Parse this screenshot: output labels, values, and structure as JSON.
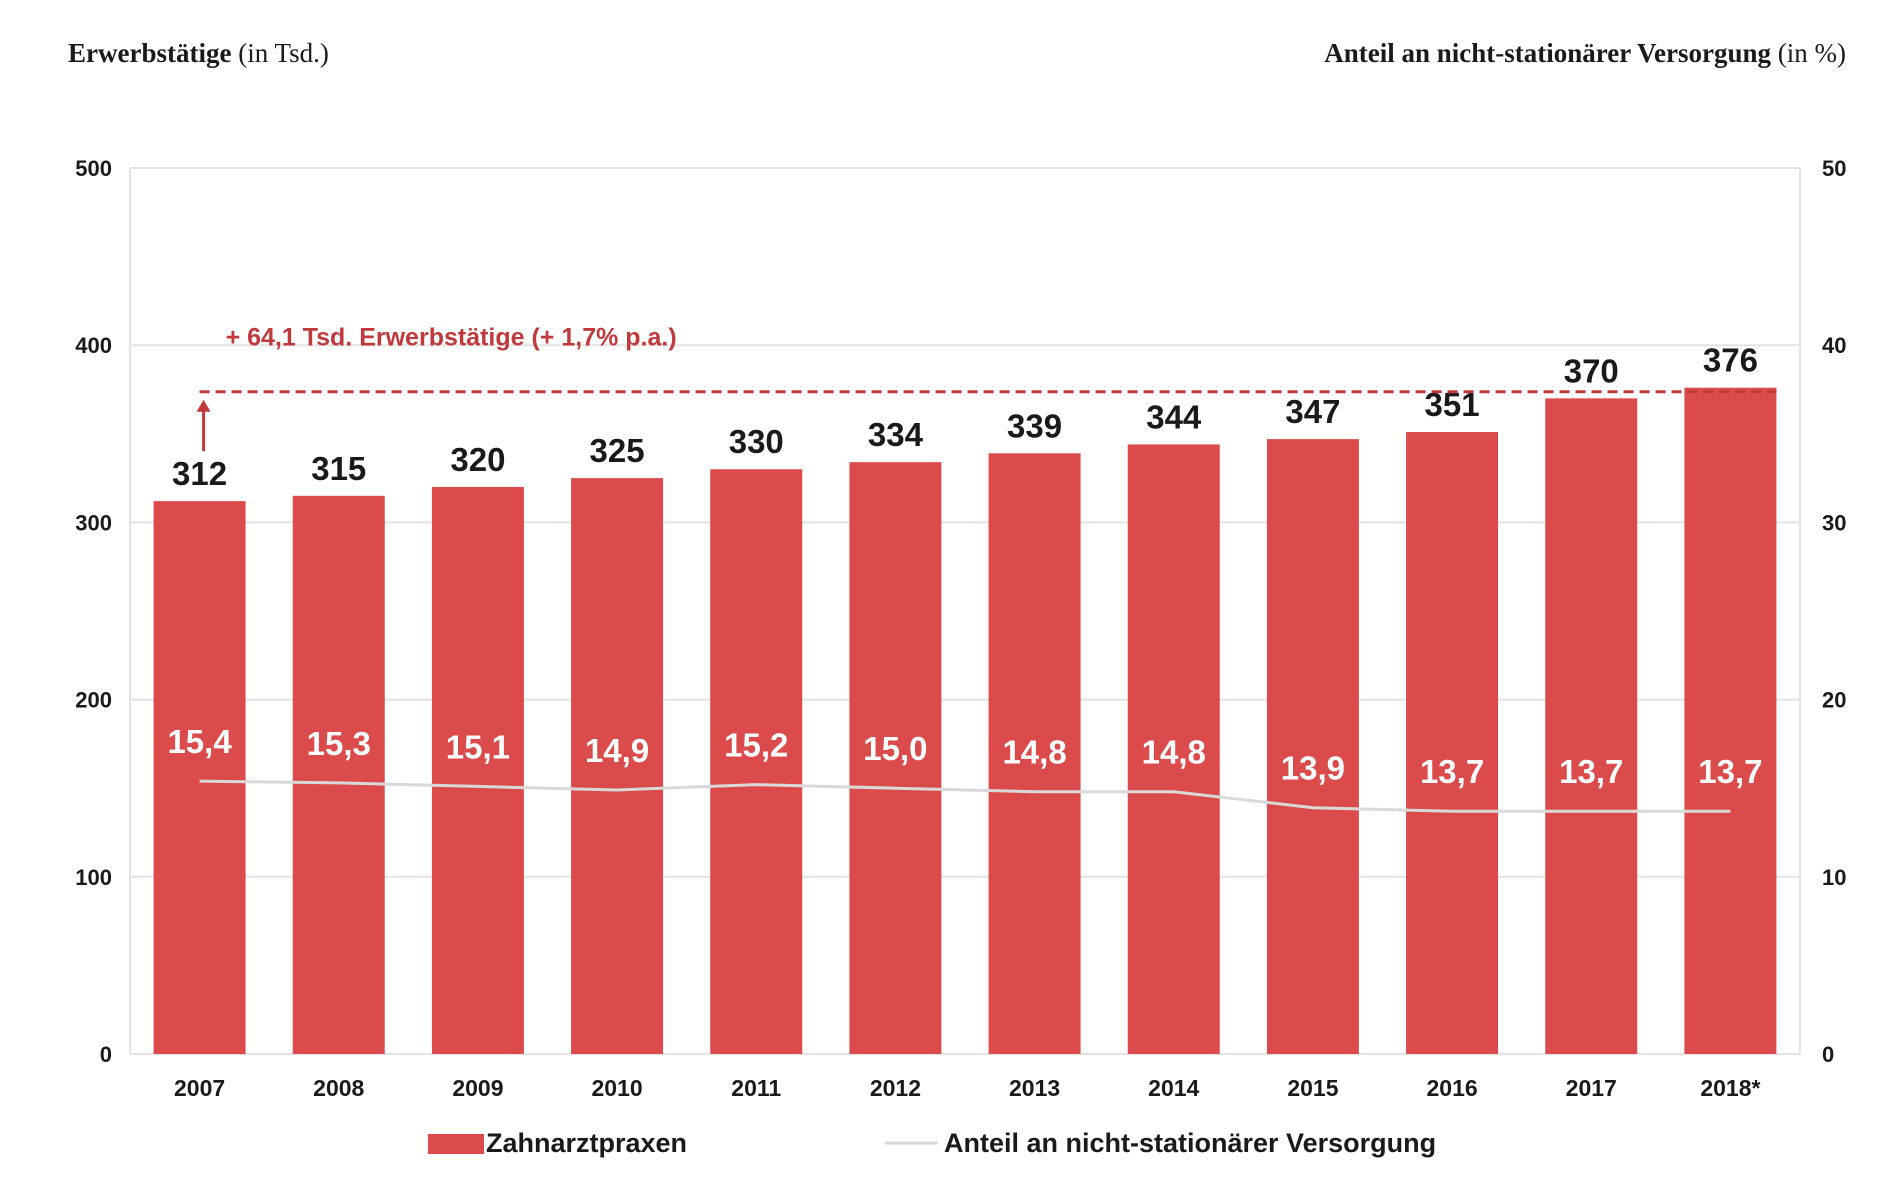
{
  "left_axis_title": {
    "bold": "Erwerbstätige",
    "normal": " (in Tsd.)"
  },
  "right_axis_title": {
    "bold": "Anteil an nicht-stationärer Versorgung",
    "normal": " (in %)"
  },
  "annotation": "+ 64,1 Tsd. Erwerbstätige (+ 1,7% p.a.)",
  "colors": {
    "bar": "#dc4b4b",
    "line": "#d9d9d9",
    "annotation": "#c0393b",
    "grid": "#e3e3e3",
    "text": "#1a1a1a"
  },
  "chart_data": {
    "type": "bar",
    "categories": [
      "2007",
      "2008",
      "2009",
      "2010",
      "2011",
      "2012",
      "2013",
      "2014",
      "2015",
      "2016",
      "2017",
      "2018*"
    ],
    "series": [
      {
        "name": "Zahnarztpraxen",
        "type": "bar",
        "axis": "left",
        "values": [
          312,
          315,
          320,
          325,
          330,
          334,
          339,
          344,
          347,
          351,
          370,
          376
        ],
        "labels": [
          "312",
          "315",
          "320",
          "325",
          "330",
          "334",
          "339",
          "344",
          "347",
          "351",
          "370",
          "376"
        ]
      },
      {
        "name": "Anteil an nicht-stationärer Versorgung",
        "type": "line",
        "axis": "right",
        "values": [
          15.4,
          15.3,
          15.1,
          14.9,
          15.2,
          15.0,
          14.8,
          14.8,
          13.9,
          13.7,
          13.7,
          13.7
        ],
        "labels": [
          "15,4",
          "15,3",
          "15,1",
          "14,9",
          "15,2",
          "15,0",
          "14,8",
          "14,8",
          "13,9",
          "13,7",
          "13,7",
          "13,7"
        ]
      }
    ],
    "y_left": {
      "lim": [
        0,
        500
      ],
      "ticks": [
        0,
        100,
        200,
        300,
        400,
        500
      ]
    },
    "y_right": {
      "lim": [
        0,
        50
      ],
      "ticks": [
        0,
        10,
        20,
        30,
        40,
        50
      ]
    },
    "reference_line": {
      "value": 376,
      "from_category": "2007",
      "to_category": "2018*",
      "style": "dashed"
    },
    "grid": true,
    "legend_position": "bottom"
  }
}
